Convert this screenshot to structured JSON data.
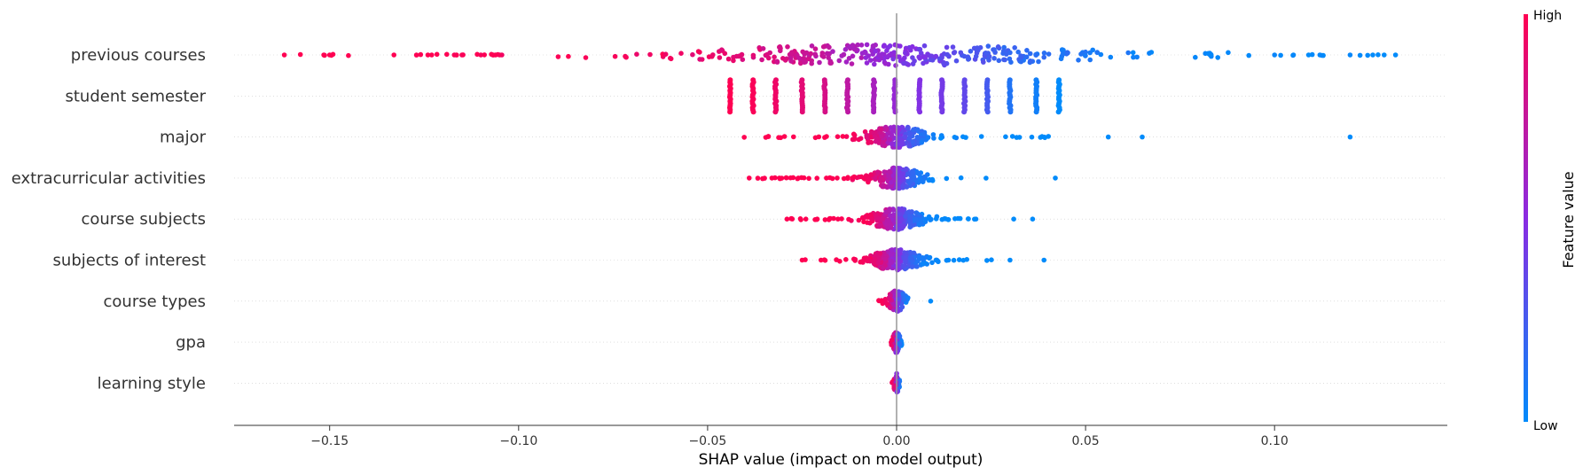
{
  "chart_data": {
    "type": "scatter",
    "subtype": "shap-beeswarm-summary",
    "xlabel": "SHAP value (impact on model output)",
    "xlim": [
      -0.18,
      0.145
    ],
    "x_ticks": [
      -0.15,
      -0.1,
      -0.05,
      0.0,
      0.05,
      0.1
    ],
    "x_tick_labels": [
      "−0.15",
      "−0.10",
      "−0.05",
      "0.00",
      "0.05",
      "0.10"
    ],
    "colorbar": {
      "label": "Feature value",
      "high_label": "High",
      "low_label": "Low",
      "high_color": "#ff0052",
      "mid_color": "#8a2be2",
      "low_color": "#008bfb"
    },
    "grid": "horizontal dotted per feature",
    "features": [
      {
        "name": "previous courses",
        "min": -0.162,
        "max": 0.132,
        "spread": 0.03,
        "density": 300,
        "outliers": [
          {
            "x": -0.162,
            "v": 1.0
          },
          {
            "x": -0.15,
            "v": 1.0
          },
          {
            "x": -0.133,
            "v": 1.0
          },
          {
            "x": -0.124,
            "v": 1.0
          },
          {
            "x": -0.123,
            "v": 1.0
          },
          {
            "x": -0.117,
            "v": 0.98
          },
          {
            "x": -0.115,
            "v": 0.98
          },
          {
            "x": -0.11,
            "v": 0.97
          },
          {
            "x": -0.105,
            "v": 0.97
          },
          {
            "x": 0.1,
            "v": 0.03
          },
          {
            "x": 0.105,
            "v": 0.02
          },
          {
            "x": 0.109,
            "v": 0.0
          },
          {
            "x": 0.112,
            "v": 0.02
          },
          {
            "x": 0.12,
            "v": 0.02
          },
          {
            "x": 0.126,
            "v": 0.0
          },
          {
            "x": 0.129,
            "v": 0.0
          },
          {
            "x": 0.132,
            "v": 0.0
          }
        ]
      },
      {
        "name": "student semester",
        "discrete": true,
        "clusters": [
          {
            "x": -0.044,
            "v": 1.0
          },
          {
            "x": -0.038,
            "v": 0.98
          },
          {
            "x": -0.032,
            "v": 0.93
          },
          {
            "x": -0.025,
            "v": 0.88
          },
          {
            "x": -0.019,
            "v": 0.82
          },
          {
            "x": -0.013,
            "v": 0.72
          },
          {
            "x": -0.006,
            "v": 0.63
          },
          {
            "x": -0.0005,
            "v": 0.55
          },
          {
            "x": 0.006,
            "v": 0.47
          },
          {
            "x": 0.012,
            "v": 0.42
          },
          {
            "x": 0.018,
            "v": 0.35
          },
          {
            "x": 0.024,
            "v": 0.25
          },
          {
            "x": 0.03,
            "v": 0.12
          },
          {
            "x": 0.037,
            "v": 0.06
          },
          {
            "x": 0.043,
            "v": 0.0
          }
        ]
      },
      {
        "name": "major",
        "min": -0.041,
        "max": 0.042,
        "spread": 0.005,
        "density": 180,
        "outliers": [
          {
            "x": 0.056,
            "v": 0.0
          },
          {
            "x": 0.065,
            "v": 0.0
          },
          {
            "x": 0.12,
            "v": 0.0
          }
        ]
      },
      {
        "name": "extracurricular activities",
        "min": -0.039,
        "max": 0.027,
        "spread": 0.004,
        "density": 200,
        "outliers": [
          {
            "x": -0.039,
            "v": 1.0
          },
          {
            "x": -0.033,
            "v": 1.0
          },
          {
            "x": -0.031,
            "v": 1.0
          },
          {
            "x": -0.026,
            "v": 1.0
          },
          {
            "x": 0.042,
            "v": 0.0
          }
        ]
      },
      {
        "name": "course subjects",
        "min": -0.029,
        "max": 0.021,
        "spread": 0.004,
        "density": 200,
        "outliers": [
          {
            "x": -0.029,
            "v": 1.0
          },
          {
            "x": -0.024,
            "v": 1.0
          },
          {
            "x": -0.021,
            "v": 1.0
          },
          {
            "x": 0.021,
            "v": 0.0
          },
          {
            "x": 0.031,
            "v": 0.0
          },
          {
            "x": 0.036,
            "v": 0.0
          }
        ]
      },
      {
        "name": "subjects of interest",
        "min": -0.025,
        "max": 0.026,
        "spread": 0.004,
        "density": 200,
        "outliers": [
          {
            "x": -0.025,
            "v": 1.0
          },
          {
            "x": -0.02,
            "v": 1.0
          },
          {
            "x": 0.03,
            "v": 0.0
          },
          {
            "x": 0.039,
            "v": 0.0
          }
        ]
      },
      {
        "name": "course types",
        "min": -0.005,
        "max": 0.003,
        "spread": 0.0015,
        "density": 80,
        "outliers": [
          {
            "x": 0.009,
            "v": 0.0
          }
        ]
      },
      {
        "name": "gpa",
        "min": -0.0015,
        "max": 0.0015,
        "spread": 0.0006,
        "density": 60,
        "outliers": []
      },
      {
        "name": "learning style",
        "min": -0.0012,
        "max": 0.0008,
        "spread": 0.0004,
        "density": 60,
        "outliers": []
      }
    ]
  }
}
